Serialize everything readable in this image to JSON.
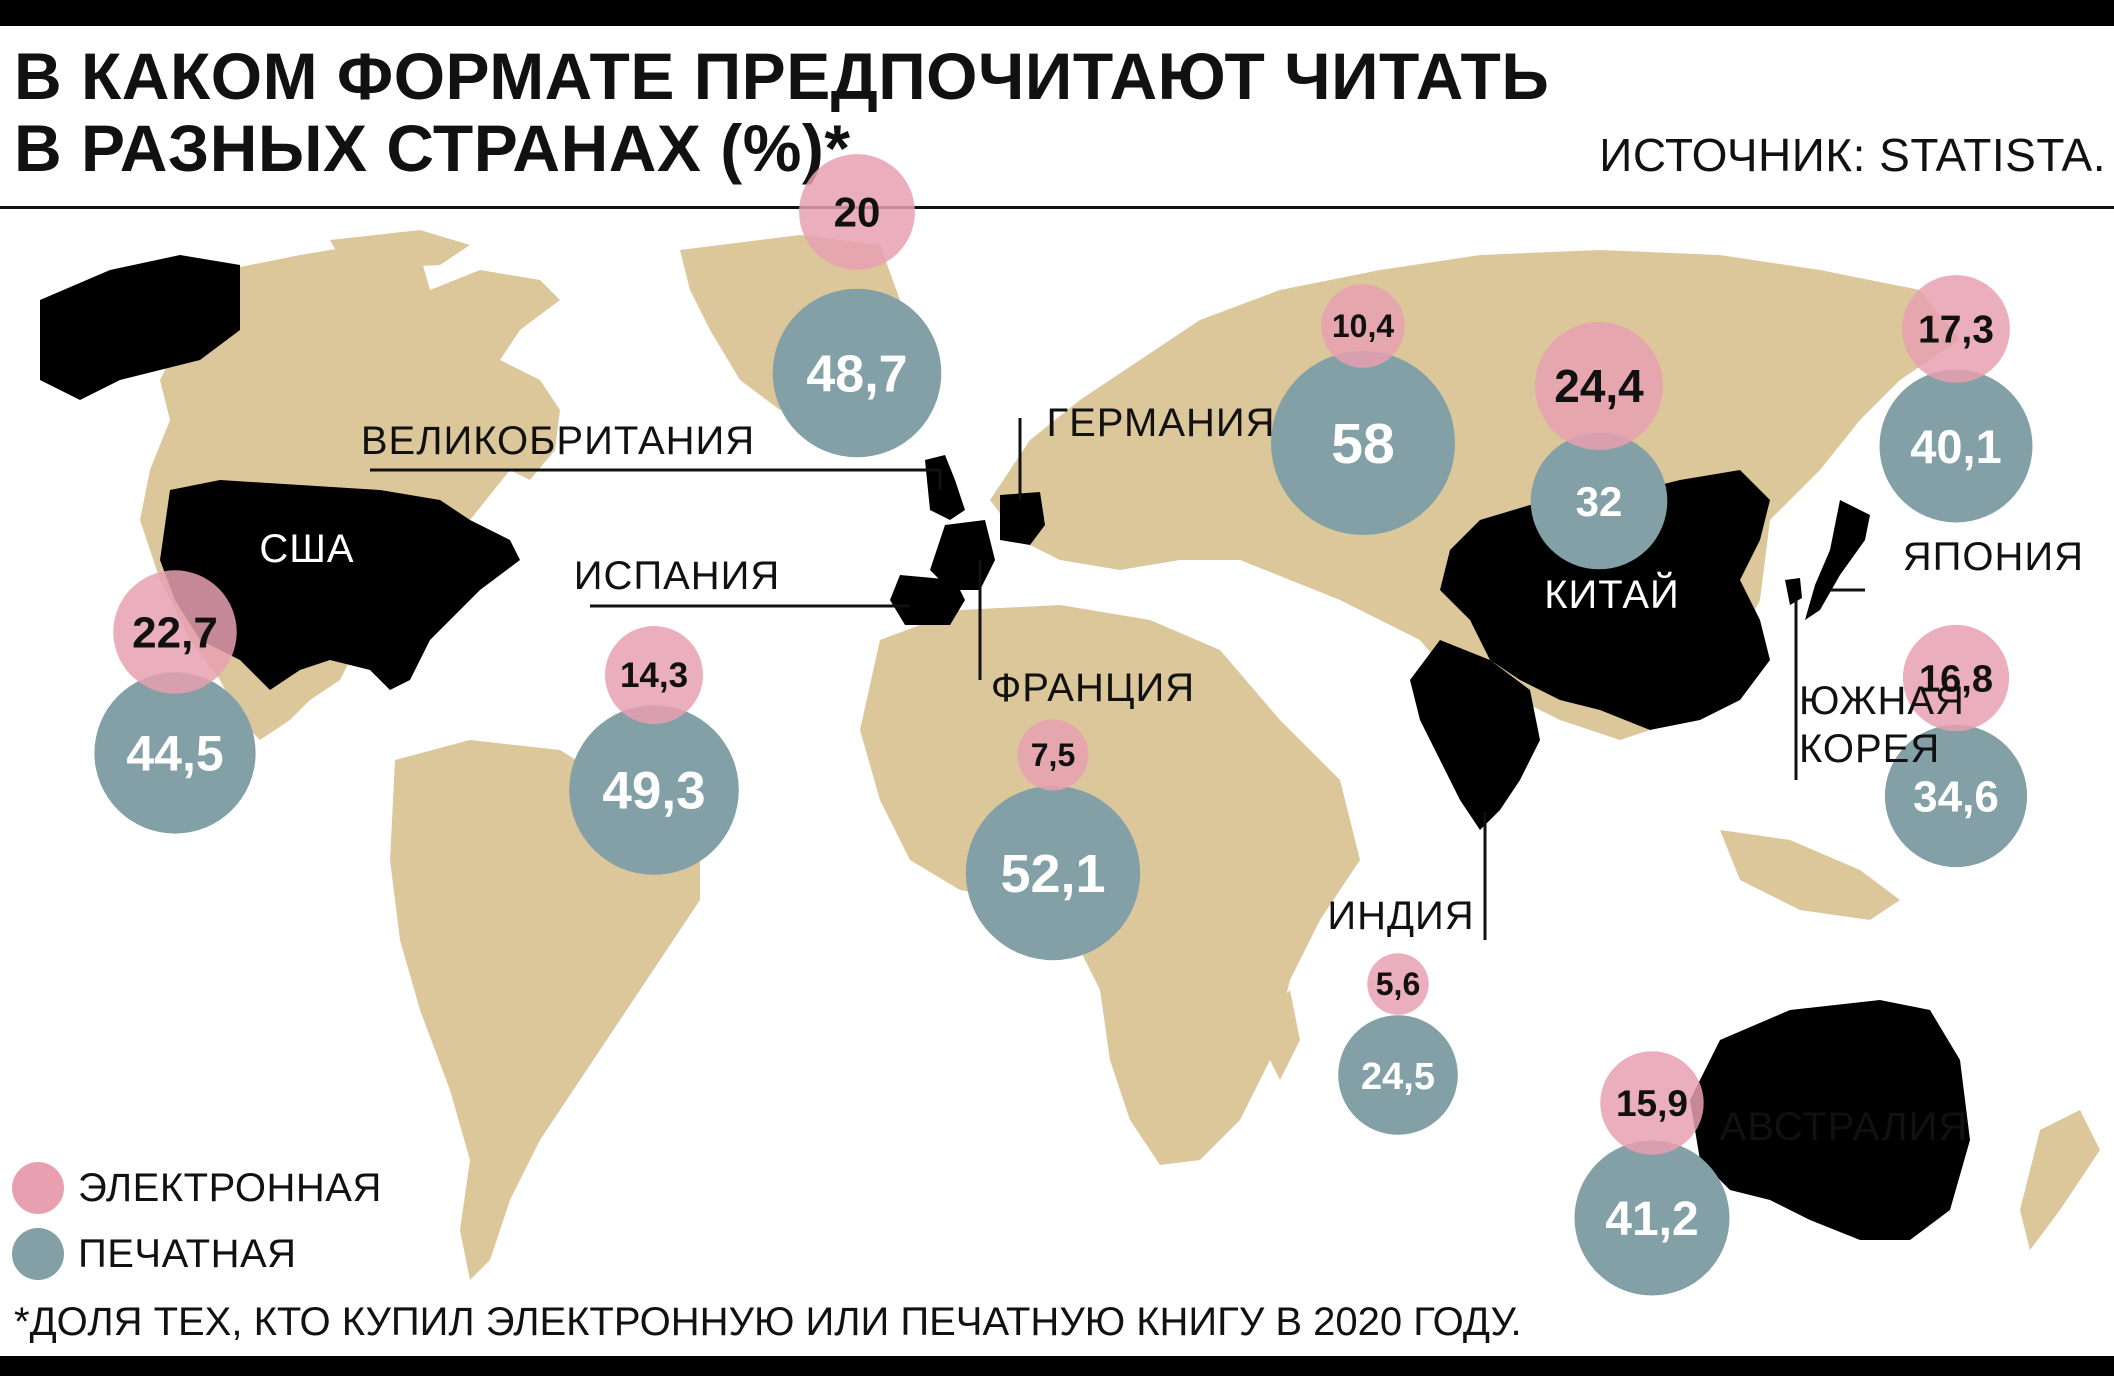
{
  "title_lines": [
    "В КАКОМ ФОРМАТЕ ПРЕДПОЧИТАЮТ ЧИТАТЬ",
    "В РАЗНЫХ СТРАНАХ (%)*"
  ],
  "source": "ИСТОЧНИК: STATISTA.",
  "footnote": "*ДОЛЯ ТЕХ, КТО КУПИЛ ЭЛЕКТРОННУЮ ИЛИ ПЕЧАТНУЮ КНИГУ В 2020 ГОДУ.",
  "legend": {
    "electronic": "ЭЛЕКТРОННАЯ",
    "print": "ПЕЧАТНАЯ"
  },
  "colors": {
    "electronic": "#e8a0b0",
    "print": "#82a0a6",
    "land": "#dcc79b",
    "highlight": "#000000"
  },
  "countries": [
    {
      "name": "США",
      "electronic": "22,7",
      "print": "44,5"
    },
    {
      "name": "ИСПАНИЯ",
      "electronic": "14,3",
      "print": "49,3"
    },
    {
      "name": "ВЕЛИКОБРИТАНИЯ",
      "electronic": "20",
      "print": "48,7"
    },
    {
      "name": "ФРАНЦИЯ",
      "electronic": "7,5",
      "print": "52,1"
    },
    {
      "name": "ГЕРМАНИЯ",
      "electronic": "10,4",
      "print": "58"
    },
    {
      "name": "КИТАЙ",
      "electronic": "24,4",
      "print": "32"
    },
    {
      "name": "ЯПОНИЯ",
      "electronic": "17,3",
      "print": "40,1"
    },
    {
      "name": "ЮЖНАЯ\nКОРЕЯ",
      "electronic": "16,8",
      "print": "34,6"
    },
    {
      "name": "ИНДИЯ",
      "electronic": "5,6",
      "print": "24,5"
    },
    {
      "name": "АВСТРАЛИЯ",
      "electronic": "15,9",
      "print": "41,2"
    }
  ]
}
